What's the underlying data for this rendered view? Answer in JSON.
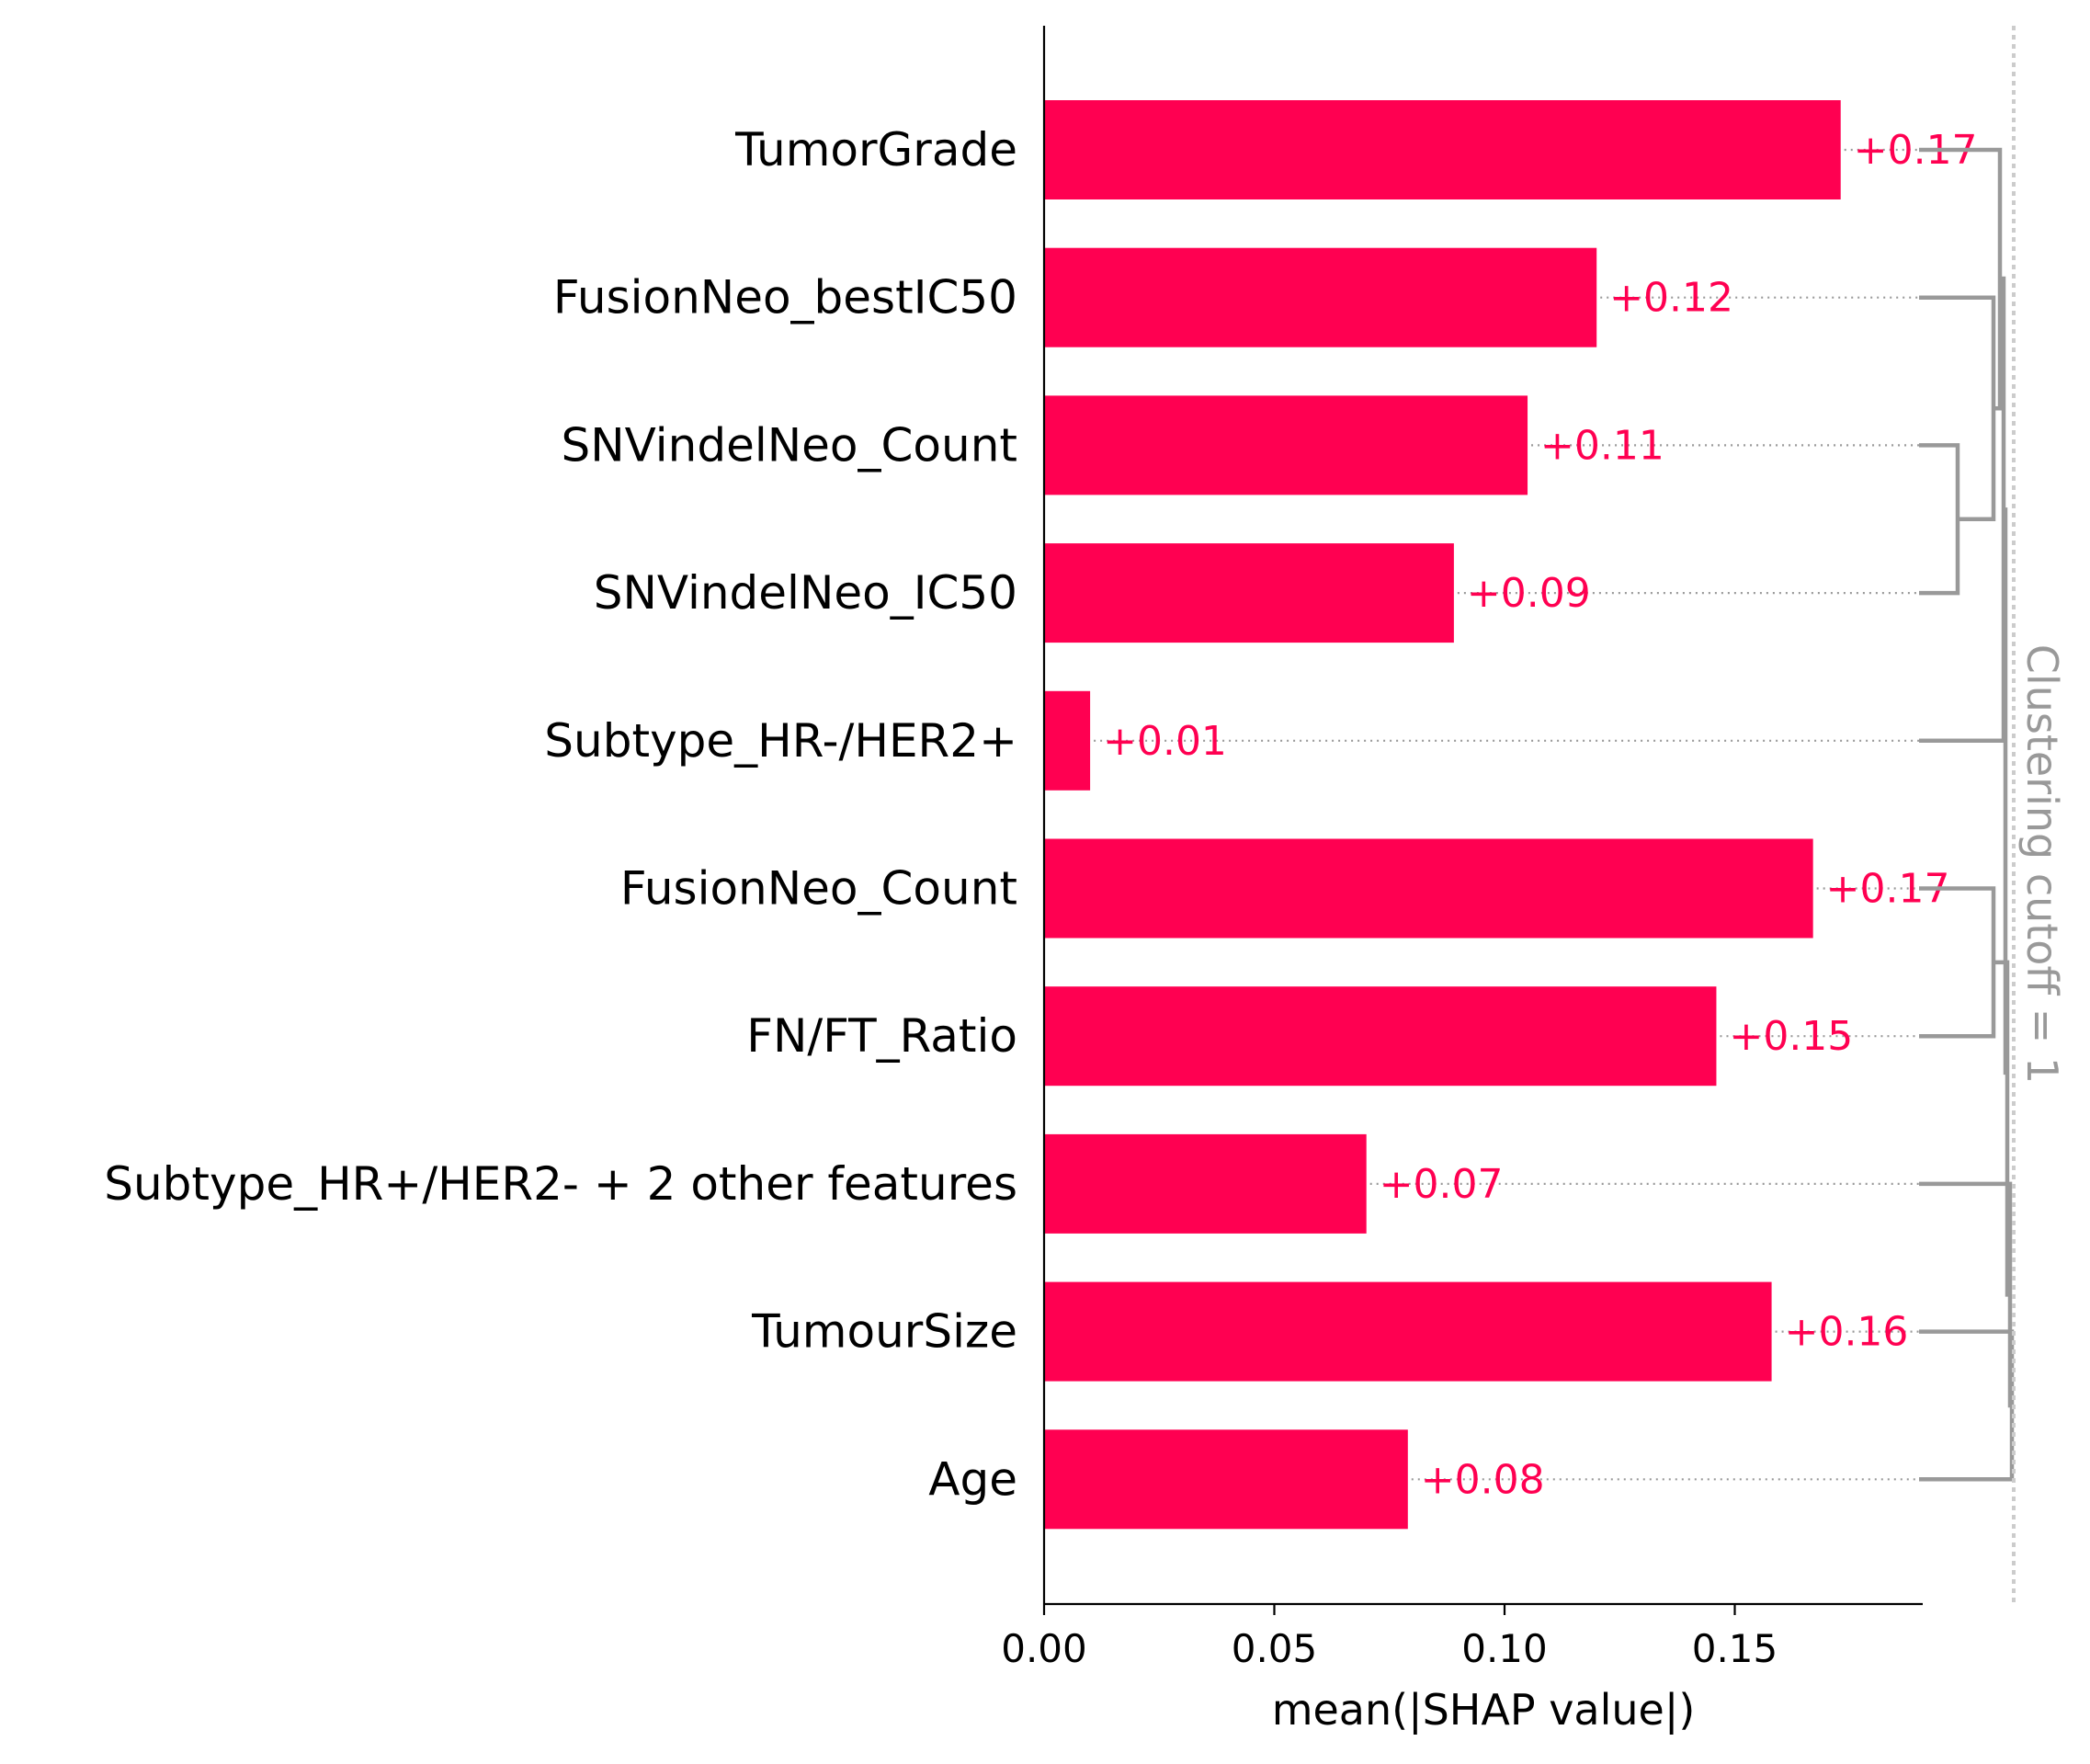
{
  "chart_data": {
    "type": "bar",
    "orientation": "horizontal",
    "categories": [
      "TumorGrade",
      "FusionNeo_bestIC50",
      "SNVindelNeo_Count",
      "SNVindelNeo_IC50",
      "Subtype_HR-/HER2+",
      "FusionNeo_Count",
      "FN/FT_Ratio",
      "Subtype_HR+/HER2- + 2 other features",
      "TumourSize",
      "Age"
    ],
    "values": [
      0.173,
      0.12,
      0.105,
      0.089,
      0.01,
      0.167,
      0.146,
      0.07,
      0.158,
      0.079
    ],
    "value_labels": [
      "+0.17",
      "+0.12",
      "+0.11",
      "+0.09",
      "+0.01",
      "+0.17",
      "+0.15",
      "+0.07",
      "+0.16",
      "+0.08"
    ],
    "xlabel": "mean(|SHAP value|)",
    "xlim": [
      0,
      0.19
    ],
    "xticks": [
      0.0,
      0.05,
      0.1,
      0.15
    ],
    "xtick_labels": [
      "0.00",
      "0.05",
      "0.10",
      "0.15"
    ],
    "clustering_label": "Clustering cutoff = 1",
    "grid": false,
    "colors": {
      "bar": "#ff0051",
      "value_label": "#ff0051",
      "axis": "#000000",
      "dendrogram": "#999999",
      "leader_line": "#999999",
      "cutoff_line": "#cccccc",
      "clustering_label": "#999999"
    }
  }
}
